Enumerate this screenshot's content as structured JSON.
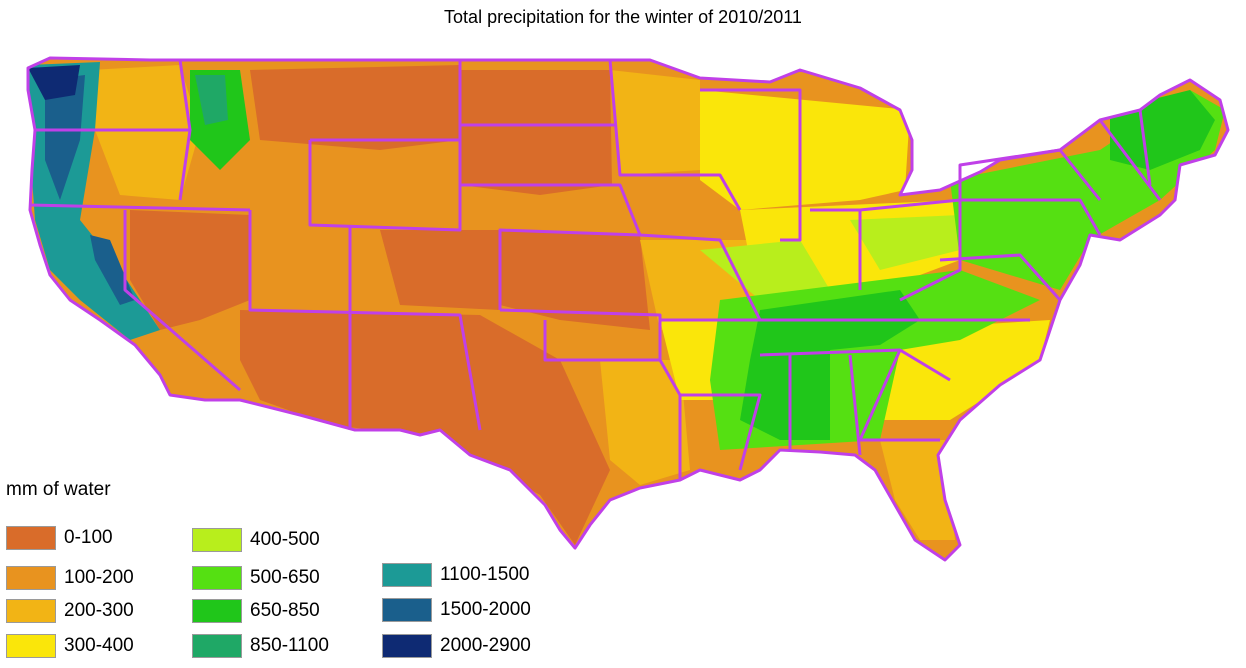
{
  "title": "Total precipitation for the winter of 2010/2011",
  "legend": {
    "title": "mm of water",
    "items": [
      {
        "label": "0-100",
        "color": "#d96c2a"
      },
      {
        "label": "100-200",
        "color": "#e8931f"
      },
      {
        "label": "200-300",
        "color": "#f2b415"
      },
      {
        "label": "300-400",
        "color": "#fae60a"
      },
      {
        "label": "400-500",
        "color": "#b8ee1c"
      },
      {
        "label": "500-650",
        "color": "#55e012"
      },
      {
        "label": "650-850",
        "color": "#20c61a"
      },
      {
        "label": "850-1100",
        "color": "#1fa866"
      },
      {
        "label": "1100-1500",
        "color": "#1c9a96"
      },
      {
        "label": "1500-2000",
        "color": "#1a5f8c"
      },
      {
        "label": "2000-2900",
        "color": "#0e2a73"
      }
    ]
  },
  "map": {
    "border_color": "#c040e8",
    "region": "contiguous United States"
  }
}
